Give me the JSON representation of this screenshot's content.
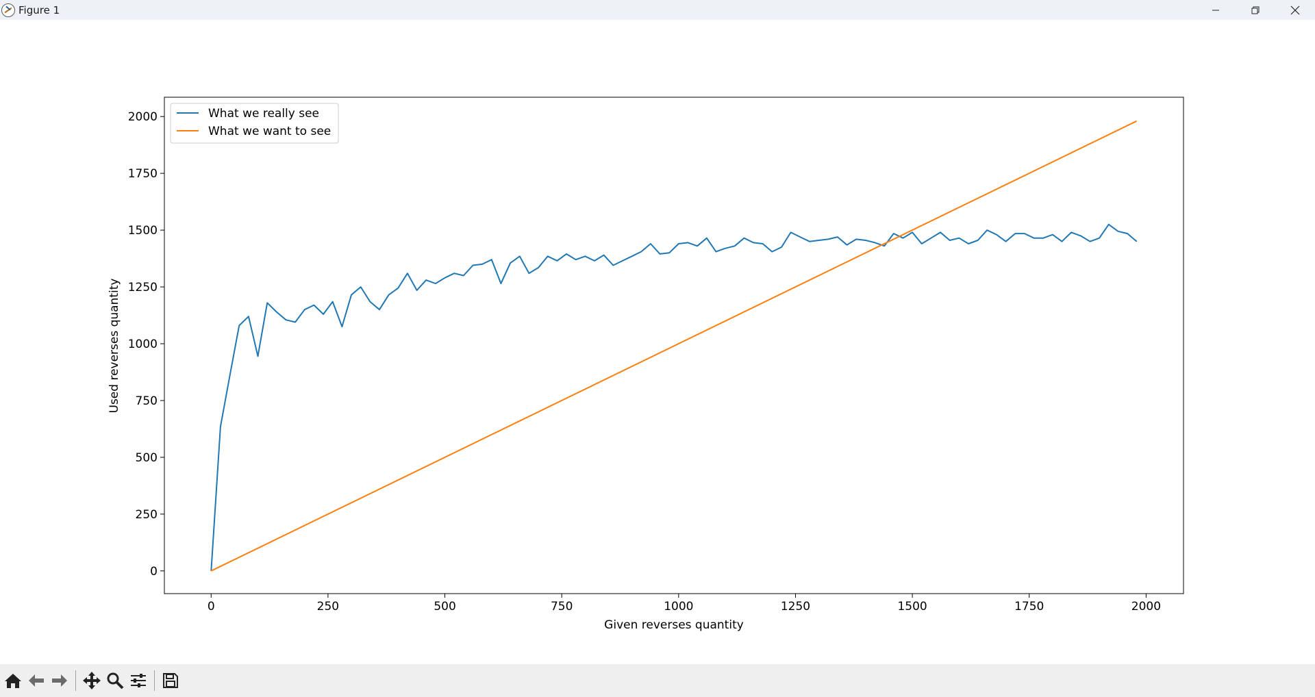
{
  "window": {
    "title": "Figure 1",
    "controls": [
      "minimize-icon",
      "restore-icon",
      "close-icon"
    ]
  },
  "toolbar": {
    "buttons": [
      "home-icon",
      "back-arrow-icon",
      "forward-arrow-icon",
      "pan-icon",
      "zoom-icon",
      "configure-subplots-icon",
      "save-icon"
    ]
  },
  "chart_data": {
    "type": "line",
    "title": "",
    "xlabel": "Given reverses quantity",
    "ylabel": "Used reverses quantity",
    "xlim": [
      -100,
      2080
    ],
    "ylim": [
      -100,
      2085
    ],
    "xticks": [
      0,
      250,
      500,
      750,
      1000,
      1250,
      1500,
      1750,
      2000
    ],
    "yticks": [
      0,
      250,
      500,
      750,
      1000,
      1250,
      1500,
      1750,
      2000
    ],
    "grid": false,
    "legend_position": "upper-left",
    "series": [
      {
        "name": "What we really see",
        "color": "#1f77b4",
        "x": [
          0,
          20,
          40,
          60,
          80,
          100,
          120,
          140,
          160,
          180,
          200,
          220,
          240,
          260,
          280,
          300,
          320,
          340,
          360,
          380,
          400,
          420,
          440,
          460,
          480,
          500,
          520,
          540,
          560,
          580,
          600,
          620,
          640,
          660,
          680,
          700,
          720,
          740,
          760,
          780,
          800,
          820,
          840,
          860,
          880,
          900,
          920,
          940,
          960,
          980,
          1000,
          1020,
          1040,
          1060,
          1080,
          1100,
          1120,
          1140,
          1160,
          1180,
          1200,
          1220,
          1240,
          1260,
          1280,
          1300,
          1320,
          1340,
          1360,
          1380,
          1400,
          1420,
          1440,
          1460,
          1480,
          1500,
          1520,
          1540,
          1560,
          1580,
          1600,
          1620,
          1640,
          1660,
          1680,
          1700,
          1720,
          1740,
          1760,
          1780,
          1800,
          1820,
          1840,
          1860,
          1880,
          1900,
          1920,
          1940,
          1960,
          1980
        ],
        "y": [
          0,
          635,
          860,
          1080,
          1120,
          945,
          1180,
          1140,
          1105,
          1095,
          1150,
          1170,
          1130,
          1185,
          1075,
          1215,
          1250,
          1185,
          1150,
          1215,
          1245,
          1310,
          1235,
          1280,
          1265,
          1290,
          1310,
          1300,
          1345,
          1350,
          1370,
          1265,
          1355,
          1385,
          1310,
          1335,
          1385,
          1365,
          1395,
          1370,
          1385,
          1365,
          1390,
          1345,
          1365,
          1385,
          1405,
          1440,
          1395,
          1400,
          1440,
          1445,
          1430,
          1465,
          1405,
          1420,
          1430,
          1465,
          1445,
          1440,
          1405,
          1425,
          1490,
          1470,
          1450,
          1455,
          1460,
          1470,
          1435,
          1460,
          1455,
          1445,
          1430,
          1485,
          1465,
          1490,
          1440,
          1465,
          1490,
          1455,
          1465,
          1440,
          1455,
          1500,
          1480,
          1450,
          1485,
          1485,
          1465,
          1465,
          1480,
          1450,
          1490,
          1475,
          1450,
          1465,
          1525,
          1495,
          1485,
          1450
        ]
      },
      {
        "name": "What we want to see",
        "color": "#ff7f0e",
        "x": [
          0,
          1980
        ],
        "y": [
          0,
          1980
        ]
      }
    ]
  }
}
